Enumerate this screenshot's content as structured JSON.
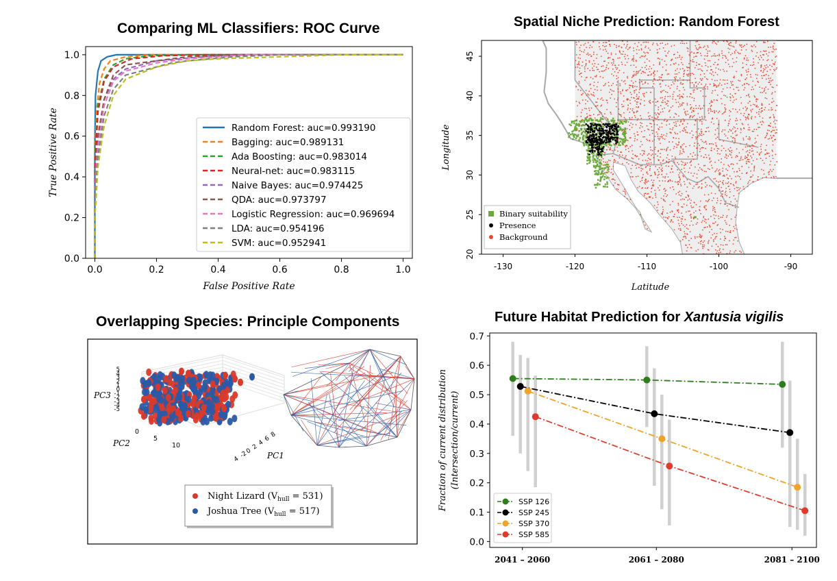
{
  "panels": {
    "roc": {
      "title": "Comparing ML Classifiers: ROC Curve"
    },
    "map": {
      "title": "Spatial Niche Prediction: Random Forest"
    },
    "pca": {
      "title": "Overlapping Species: Principle Components"
    },
    "future": {
      "title_prefix": "Future Habitat Prediction for ",
      "title_species": "Xantusia vigilis"
    }
  },
  "chart_data": [
    {
      "id": "roc",
      "type": "line",
      "title": "Comparing ML Classifiers: ROC Curve",
      "xlabel": "False Positive Rate",
      "ylabel": "True Positive Rate",
      "xlim": [
        -0.03,
        1.03
      ],
      "ylim": [
        0.0,
        1.04
      ],
      "xticks": [
        "0.0",
        "0.2",
        "0.4",
        "0.6",
        "0.8",
        "1.0"
      ],
      "yticks": [
        "0.0",
        "0.2",
        "0.4",
        "0.6",
        "0.8",
        "1.0"
      ],
      "legend_position": "center-right",
      "series": [
        {
          "name": "Random Forest: auc=0.993190",
          "color": "#1f77b4",
          "style": "solid",
          "points": [
            [
              0,
              0
            ],
            [
              0,
              0.55
            ],
            [
              0.002,
              0.8
            ],
            [
              0.01,
              0.92
            ],
            [
              0.02,
              0.97
            ],
            [
              0.04,
              0.99
            ],
            [
              0.07,
              1.0
            ],
            [
              1,
              1.0
            ]
          ]
        },
        {
          "name": "Bagging: auc=0.989131",
          "color": "#ff7f0e",
          "style": "dashed",
          "points": [
            [
              0,
              0
            ],
            [
              0,
              0.5
            ],
            [
              0.005,
              0.72
            ],
            [
              0.015,
              0.86
            ],
            [
              0.03,
              0.93
            ],
            [
              0.05,
              0.97
            ],
            [
              0.1,
              0.99
            ],
            [
              0.18,
              1.0
            ],
            [
              1,
              1.0
            ]
          ]
        },
        {
          "name": "Ada Boosting: auc=0.983014",
          "color": "#2ca02c",
          "style": "dashed",
          "points": [
            [
              0,
              0
            ],
            [
              0,
              0.5
            ],
            [
              0.01,
              0.75
            ],
            [
              0.03,
              0.88
            ],
            [
              0.06,
              0.95
            ],
            [
              0.1,
              0.98
            ],
            [
              0.18,
              0.995
            ],
            [
              0.3,
              1.0
            ],
            [
              1,
              1.0
            ]
          ]
        },
        {
          "name": "Neural-net: auc=0.983115",
          "color": "#d62728",
          "style": "dashed",
          "points": [
            [
              0,
              0
            ],
            [
              0,
              0.45
            ],
            [
              0.01,
              0.72
            ],
            [
              0.03,
              0.87
            ],
            [
              0.06,
              0.94
            ],
            [
              0.12,
              0.98
            ],
            [
              0.22,
              0.995
            ],
            [
              0.35,
              1.0
            ],
            [
              1,
              1.0
            ]
          ]
        },
        {
          "name": "Naive Bayes: auc=0.974425",
          "color": "#9467bd",
          "style": "dashed",
          "points": [
            [
              0,
              0
            ],
            [
              0,
              0.4
            ],
            [
              0.01,
              0.6
            ],
            [
              0.03,
              0.78
            ],
            [
              0.06,
              0.88
            ],
            [
              0.1,
              0.93
            ],
            [
              0.2,
              0.97
            ],
            [
              0.35,
              0.99
            ],
            [
              0.5,
              1.0
            ],
            [
              1,
              1.0
            ]
          ]
        },
        {
          "name": "QDA: auc=0.973797",
          "color": "#8c564b",
          "style": "dashed",
          "points": [
            [
              0,
              0
            ],
            [
              0,
              0.4
            ],
            [
              0.01,
              0.6
            ],
            [
              0.03,
              0.78
            ],
            [
              0.06,
              0.9
            ],
            [
              0.1,
              0.95
            ],
            [
              0.2,
              0.97
            ],
            [
              0.3,
              0.99
            ],
            [
              0.45,
              1.0
            ],
            [
              1,
              1.0
            ]
          ]
        },
        {
          "name": "Logistic Regression: auc=0.969694",
          "color": "#e377c2",
          "style": "dashed",
          "points": [
            [
              0,
              0
            ],
            [
              0,
              0.35
            ],
            [
              0.01,
              0.55
            ],
            [
              0.03,
              0.75
            ],
            [
              0.06,
              0.87
            ],
            [
              0.1,
              0.92
            ],
            [
              0.2,
              0.96
            ],
            [
              0.3,
              0.98
            ],
            [
              0.5,
              1.0
            ],
            [
              1,
              1.0
            ]
          ]
        },
        {
          "name": "LDA: auc=0.954196",
          "color": "#7f7f7f",
          "style": "dashed",
          "points": [
            [
              0,
              0
            ],
            [
              0,
              0.3
            ],
            [
              0.01,
              0.5
            ],
            [
              0.03,
              0.7
            ],
            [
              0.06,
              0.83
            ],
            [
              0.1,
              0.9
            ],
            [
              0.2,
              0.94
            ],
            [
              0.25,
              0.96
            ],
            [
              0.3,
              0.97
            ],
            [
              0.45,
              0.99
            ],
            [
              0.6,
              1.0
            ],
            [
              1,
              1.0
            ]
          ]
        },
        {
          "name": "SVM: auc=0.952941",
          "color": "#bcbd22",
          "style": "dashed",
          "points": [
            [
              0,
              0
            ],
            [
              0,
              0.2
            ],
            [
              0.01,
              0.45
            ],
            [
              0.03,
              0.65
            ],
            [
              0.06,
              0.8
            ],
            [
              0.1,
              0.88
            ],
            [
              0.2,
              0.94
            ],
            [
              0.3,
              0.97
            ],
            [
              0.4,
              0.98
            ],
            [
              0.6,
              0.99
            ],
            [
              0.8,
              1.0
            ],
            [
              1,
              1.0
            ]
          ]
        }
      ]
    },
    {
      "id": "map",
      "type": "scatter",
      "title": "Spatial Niche Prediction: Random Forest",
      "xlabel": "Latitude",
      "ylabel": "Longitude",
      "xlim": [
        -133,
        -87
      ],
      "ylim": [
        20,
        47
      ],
      "xticks": [
        -130,
        -120,
        -110,
        -100,
        -90
      ],
      "yticks": [
        20,
        25,
        30,
        35,
        40,
        45
      ],
      "background_extent": {
        "x": [
          -120,
          -92
        ],
        "y": [
          20,
          47
        ]
      },
      "series": [
        {
          "name": "Binary suitability",
          "color": "#6aaa3a",
          "marker": "square"
        },
        {
          "name": "Presence",
          "color": "#000000",
          "marker": "circle"
        },
        {
          "name": "Background",
          "color": "#e8452c",
          "marker": "circle"
        }
      ],
      "legend_position": "lower-left"
    },
    {
      "id": "pca",
      "type": "scatter",
      "title": "Overlapping Species: Principle Components",
      "axes": {
        "x": "PC1",
        "y": "PC2",
        "z": "PC3"
      },
      "z_ticks": [
        "5",
        "4",
        "3",
        "2",
        "1",
        "0",
        "-1",
        "-2",
        "-3",
        "-4",
        "-5"
      ],
      "pc2_ticks": [
        "0",
        "5",
        "10"
      ],
      "pc1_ticks": [
        "8",
        "6",
        "4",
        "2",
        "0",
        "-2",
        "4"
      ],
      "series": [
        {
          "name": "Night Lizard",
          "hull_label": "hull",
          "hull_value": "= 531)",
          "color": "#d93a2b"
        },
        {
          "name": "Joshua Tree",
          "hull_label": "hull",
          "hull_value": "= 517)",
          "color": "#2a5aa6"
        }
      ]
    },
    {
      "id": "future",
      "type": "line",
      "title": "Future Habitat Prediction for Xantusia vigilis",
      "ylabel": "Fraction of current distribution (Intersection/current)",
      "ylim": [
        -0.02,
        0.71
      ],
      "yticks": [
        "0.0",
        "0.1",
        "0.2",
        "0.3",
        "0.4",
        "0.5",
        "0.6",
        "0.7"
      ],
      "categories": [
        "2041 – 2060",
        "2061 – 2080",
        "2081 – 2100"
      ],
      "legend_position": "lower-left",
      "series": [
        {
          "name": "SSP 126",
          "color": "#2e7d1f",
          "values": [
            0.555,
            0.55,
            0.535
          ],
          "err_low": [
            0.36,
            0.39,
            0.32
          ],
          "err_high": [
            0.68,
            0.665,
            0.68
          ]
        },
        {
          "name": "SSP 245",
          "color": "#000000",
          "values": [
            0.528,
            0.435,
            0.371
          ],
          "err_low": [
            0.3,
            0.19,
            0.05
          ],
          "err_high": [
            0.635,
            0.59,
            0.548
          ]
        },
        {
          "name": "SSP 370",
          "color": "#f0a32a",
          "values": [
            0.512,
            0.35,
            0.185
          ],
          "err_low": [
            0.24,
            0.11,
            0.04
          ],
          "err_high": [
            0.625,
            0.5,
            0.35
          ]
        },
        {
          "name": "SSP 585",
          "color": "#e03a2a",
          "values": [
            0.425,
            0.257,
            0.105
          ],
          "err_low": [
            0.185,
            0.055,
            0.02
          ],
          "err_high": [
            0.565,
            0.415,
            0.23
          ]
        }
      ]
    }
  ]
}
